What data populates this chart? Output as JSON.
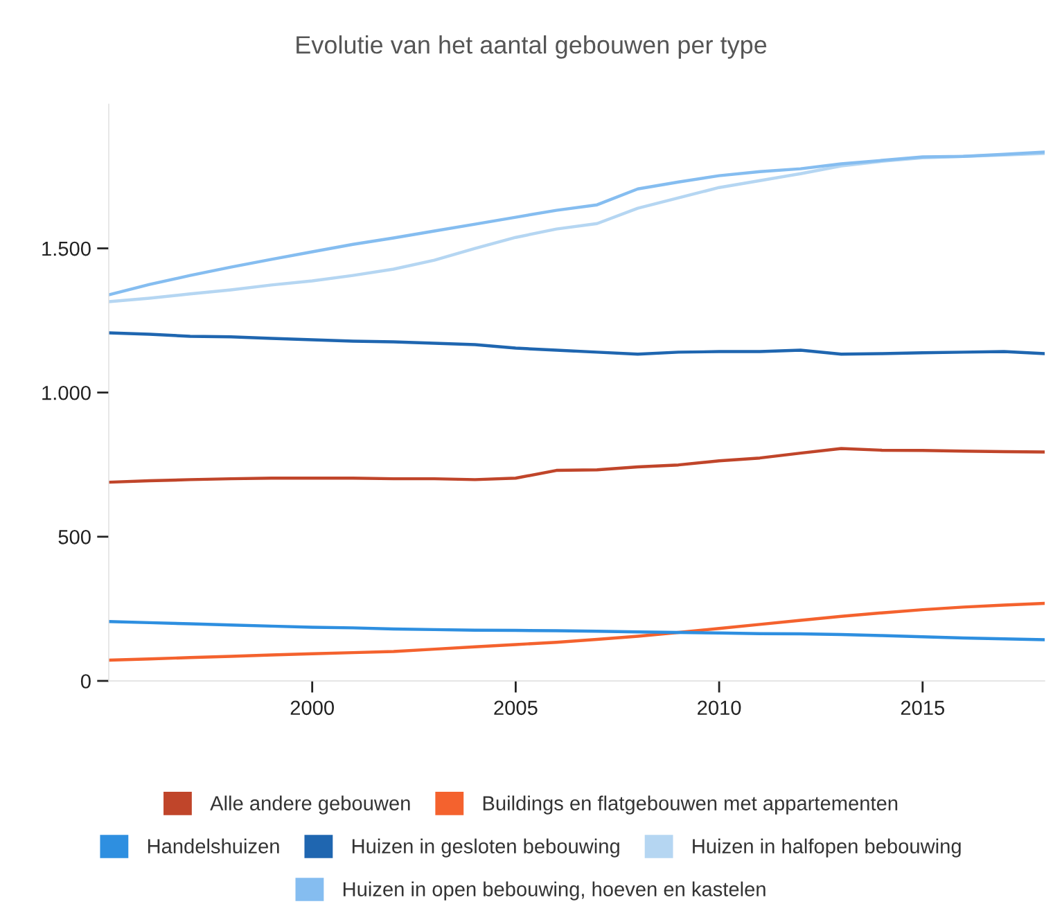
{
  "chart_data": {
    "type": "line",
    "title": "Evolutie van het aantal gebouwen per type",
    "x": [
      1995,
      1996,
      1997,
      1998,
      1999,
      2000,
      2001,
      2002,
      2003,
      2004,
      2005,
      2006,
      2007,
      2008,
      2009,
      2010,
      2011,
      2012,
      2013,
      2014,
      2015,
      2016,
      2017,
      2018
    ],
    "series": [
      {
        "name": "Alle andere gebouwen",
        "color": "#c0452a",
        "values": [
          689,
          694,
          698,
          701,
          703,
          703,
          703,
          701,
          701,
          698,
          703,
          730,
          732,
          742,
          749,
          763,
          773,
          790,
          806,
          800,
          799,
          797,
          795,
          794
        ]
      },
      {
        "name": "Buildings en flatgebouwen met appartementen",
        "color": "#f4622e",
        "values": [
          72,
          76,
          81,
          85,
          90,
          94,
          98,
          102,
          110,
          118,
          126,
          134,
          144,
          155,
          168,
          182,
          196,
          210,
          224,
          236,
          247,
          256,
          263,
          269
        ]
      },
      {
        "name": "Handelshuizen",
        "color": "#2e8fe0",
        "values": [
          206,
          202,
          198,
          194,
          190,
          186,
          184,
          180,
          178,
          176,
          175,
          174,
          172,
          170,
          168,
          166,
          164,
          163,
          161,
          157,
          153,
          149,
          146,
          143
        ]
      },
      {
        "name": "Huizen in gesloten bebouwing",
        "color": "#1f66b0",
        "values": [
          1207,
          1202,
          1195,
          1193,
          1188,
          1183,
          1178,
          1176,
          1171,
          1166,
          1154,
          1147,
          1140,
          1133,
          1140,
          1142,
          1142,
          1147,
          1133,
          1135,
          1138,
          1140,
          1142,
          1135
        ]
      },
      {
        "name": "Huizen in halfopen bebouwing",
        "color": "#b5d6f2",
        "values": [
          1315,
          1327,
          1342,
          1356,
          1373,
          1387,
          1406,
          1428,
          1459,
          1500,
          1538,
          1567,
          1586,
          1639,
          1675,
          1711,
          1735,
          1759,
          1786,
          1802,
          1814,
          1819,
          1824,
          1829
        ]
      },
      {
        "name": "Huizen in open bebouwing, hoeven en kastelen",
        "color": "#85bdf0",
        "values": [
          1339,
          1375,
          1406,
          1435,
          1462,
          1488,
          1514,
          1536,
          1560,
          1584,
          1608,
          1632,
          1651,
          1706,
          1730,
          1752,
          1766,
          1776,
          1793,
          1805,
          1817,
          1819,
          1826,
          1834
        ]
      }
    ],
    "xlim": [
      1995,
      2018
    ],
    "xticks": [
      2000,
      2005,
      2010,
      2015
    ],
    "ylim": [
      0,
      2000
    ],
    "yticks": [
      0,
      500,
      {
        "value": 1000,
        "label": "1.000"
      },
      {
        "value": 1500,
        "label": "1.500"
      }
    ],
    "grid": false,
    "legend": "bottom",
    "marker": "none",
    "line_style": "solid"
  }
}
